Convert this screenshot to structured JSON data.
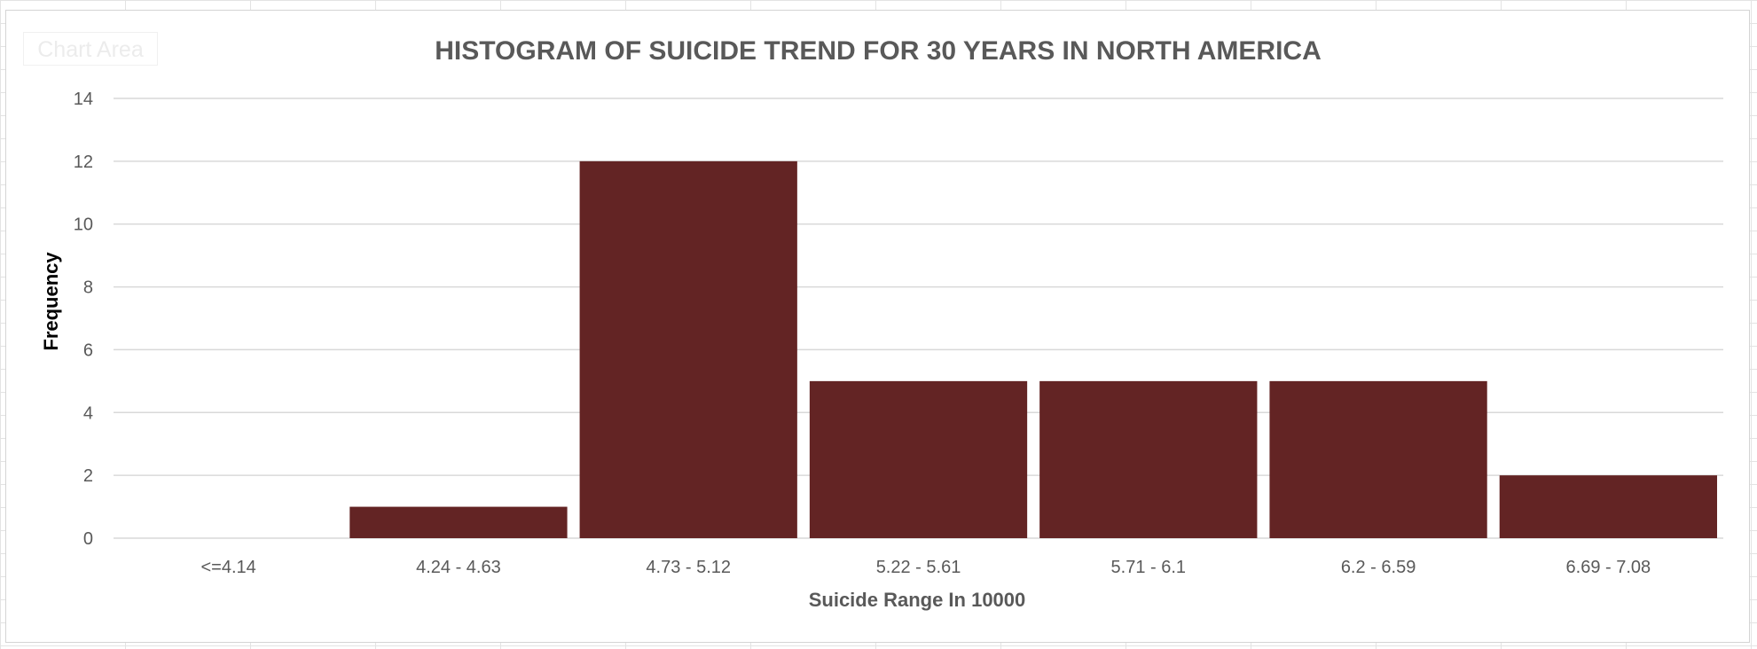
{
  "chart_area_label": "Chart Area",
  "colors": {
    "bar": "#632424",
    "gridline": "#d9d9d9",
    "text": "#595959"
  },
  "chart_data": {
    "type": "bar",
    "title": "HISTOGRAM OF SUICIDE TREND FOR 30 YEARS IN NORTH AMERICA",
    "xlabel": "Suicide Range In 10000",
    "ylabel": "Frequency",
    "categories": [
      "<=4.14",
      "4.24 - 4.63",
      "4.73 - 5.12",
      "5.22 - 5.61",
      "5.71 - 6.1",
      "6.2 - 6.59",
      "6.69 - 7.08"
    ],
    "values": [
      0,
      1,
      12,
      5,
      5,
      5,
      2
    ],
    "ylim": [
      0,
      14
    ],
    "yticks": [
      0,
      2,
      4,
      6,
      8,
      10,
      12,
      14
    ],
    "grid": true,
    "legend": "none"
  }
}
